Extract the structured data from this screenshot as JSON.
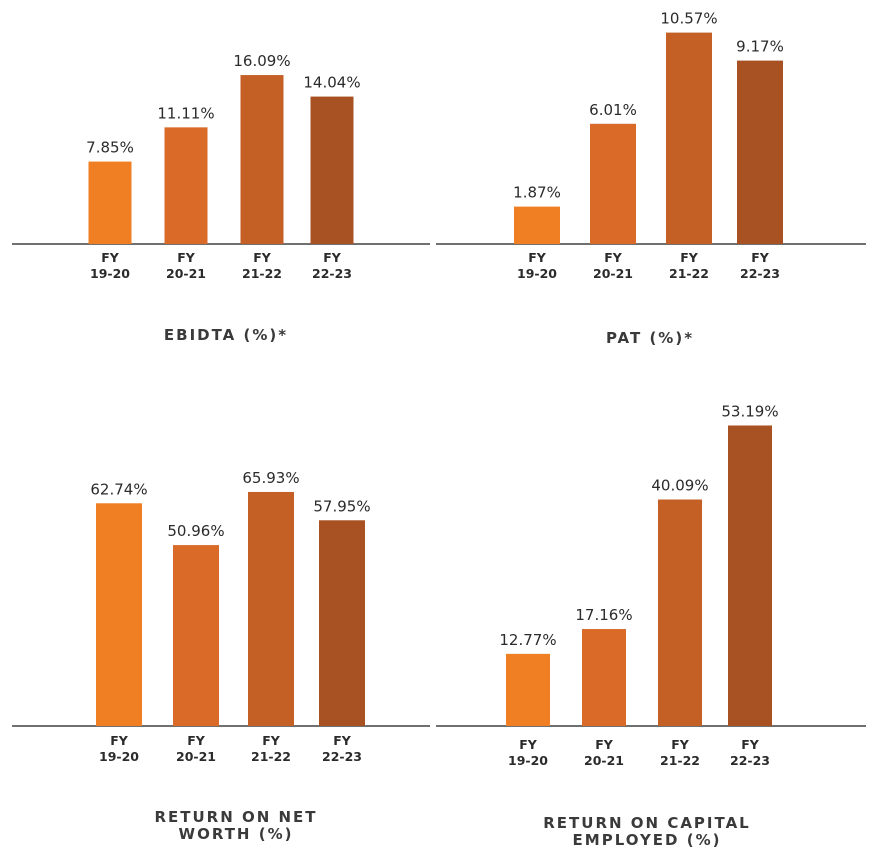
{
  "chart_data": [
    {
      "type": "bar",
      "title": "EBIDTA (%)*",
      "categories": [
        "FY 19-20",
        "FY 20-21",
        "FY 21-22",
        "FY 22-23"
      ],
      "tick_lines": [
        [
          "FY",
          "19-20"
        ],
        [
          "FY",
          "20-21"
        ],
        [
          "FY",
          "21-22"
        ],
        [
          "FY",
          "22-23"
        ]
      ],
      "values": [
        7.85,
        11.11,
        16.09,
        14.04
      ],
      "value_labels": [
        "7.85%",
        "11.11%",
        "16.09%",
        "14.04%"
      ],
      "unit": "%",
      "grid": false,
      "colors": [
        "#ef7f22",
        "#d96a28",
        "#c45f26",
        "#a85224"
      ]
    },
    {
      "type": "bar",
      "title": "PAT (%)*",
      "categories": [
        "FY 19-20",
        "FY 20-21",
        "FY 21-22",
        "FY 22-23"
      ],
      "tick_lines": [
        [
          "FY",
          "19-20"
        ],
        [
          "FY",
          "20-21"
        ],
        [
          "FY",
          "21-22"
        ],
        [
          "FY",
          "22-23"
        ]
      ],
      "values": [
        1.87,
        6.01,
        10.57,
        9.17
      ],
      "value_labels": [
        "1.87%",
        "6.01%",
        "10.57%",
        "9.17%"
      ],
      "unit": "%",
      "grid": false,
      "colors": [
        "#ef7f22",
        "#d96a28",
        "#c45f26",
        "#a85224"
      ]
    },
    {
      "type": "bar",
      "title": "RETURN ON NET WORTH (%)",
      "categories": [
        "FY 19-20",
        "FY 20-21",
        "FY 21-22",
        "FY 22-23"
      ],
      "tick_lines": [
        [
          "FY",
          "19-20"
        ],
        [
          "FY",
          "20-21"
        ],
        [
          "FY",
          "21-22"
        ],
        [
          "FY",
          "22-23"
        ]
      ],
      "values": [
        62.74,
        50.96,
        65.93,
        57.95
      ],
      "value_labels": [
        "62.74%",
        "50.96%",
        "65.93%",
        "57.95%"
      ],
      "unit": "%",
      "grid": false,
      "colors": [
        "#ef7f22",
        "#d96a28",
        "#c45f26",
        "#a85224"
      ]
    },
    {
      "type": "bar",
      "title": "RETURN ON CAPITAL EMPLOYED (%)",
      "categories": [
        "FY 19-20",
        "FY 20-21",
        "FY 21-22",
        "FY 22-23"
      ],
      "tick_lines": [
        [
          "FY",
          "19-20"
        ],
        [
          "FY",
          "20-21"
        ],
        [
          "FY",
          "21-22"
        ],
        [
          "FY",
          "22-23"
        ]
      ],
      "values": [
        12.77,
        17.16,
        40.09,
        53.19
      ],
      "value_labels": [
        "12.77%",
        "17.16%",
        "40.09%",
        "53.19%"
      ],
      "unit": "%",
      "grid": false,
      "colors": [
        "#ef7f22",
        "#d96a28",
        "#c45f26",
        "#a85224"
      ]
    }
  ]
}
